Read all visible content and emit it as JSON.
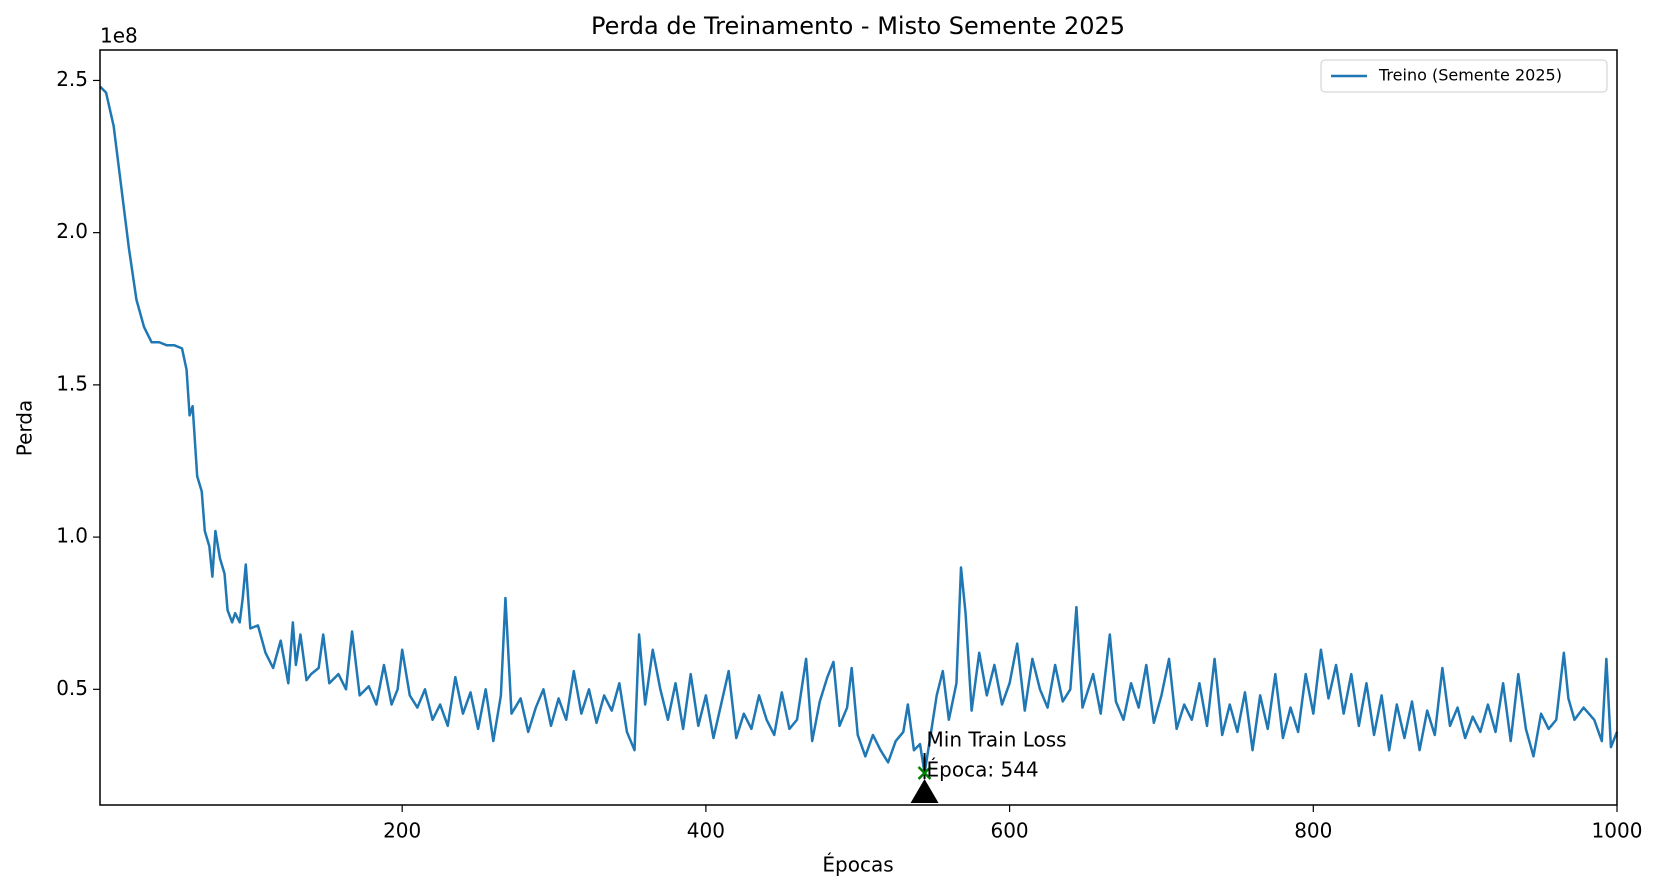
{
  "chart_data": {
    "type": "line",
    "title": "Perda de Treinamento - Misto Semente 2025",
    "xlabel": "Épocas",
    "ylabel": "Perda",
    "y_offset_label": "1e8",
    "xlim": [
      1,
      1000
    ],
    "xticks": [
      200,
      400,
      600,
      800,
      1000
    ],
    "ylim": [
      0.12,
      2.6
    ],
    "yticks": [
      0.5,
      {
        "value": 1,
        "label": "1.0"
      },
      1.5,
      {
        "value": 2,
        "label": "2.0"
      },
      2.5
    ],
    "grid": false,
    "legend_loc": "upper right",
    "x": [
      1,
      5,
      10,
      15,
      20,
      25,
      30,
      35,
      40,
      45,
      50,
      55,
      58,
      60,
      62,
      65,
      68,
      70,
      73,
      75,
      77,
      80,
      83,
      85,
      88,
      90,
      93,
      95,
      97,
      100,
      105,
      110,
      115,
      120,
      125,
      128,
      130,
      133,
      137,
      140,
      145,
      148,
      152,
      158,
      163,
      167,
      172,
      178,
      183,
      188,
      193,
      197,
      200,
      205,
      210,
      215,
      220,
      225,
      230,
      235,
      240,
      245,
      250,
      255,
      260,
      265,
      268,
      272,
      278,
      283,
      288,
      293,
      298,
      303,
      308,
      313,
      318,
      323,
      328,
      333,
      338,
      343,
      348,
      353,
      356,
      360,
      365,
      370,
      375,
      380,
      385,
      390,
      395,
      400,
      405,
      410,
      415,
      420,
      425,
      430,
      435,
      440,
      445,
      450,
      455,
      460,
      466,
      470,
      475,
      480,
      484,
      488,
      493,
      496,
      500,
      505,
      510,
      515,
      520,
      525,
      530,
      533,
      537,
      541,
      544,
      548,
      552,
      556,
      560,
      565,
      568,
      571,
      575,
      580,
      585,
      590,
      595,
      600,
      605,
      610,
      615,
      620,
      625,
      630,
      635,
      640,
      644,
      648,
      655,
      660,
      666,
      670,
      675,
      680,
      685,
      690,
      695,
      700,
      705,
      710,
      715,
      720,
      725,
      730,
      735,
      740,
      745,
      750,
      755,
      760,
      765,
      770,
      775,
      780,
      785,
      790,
      795,
      800,
      805,
      810,
      815,
      820,
      825,
      830,
      835,
      840,
      845,
      850,
      855,
      860,
      865,
      870,
      875,
      880,
      885,
      890,
      895,
      900,
      905,
      910,
      915,
      920,
      925,
      930,
      935,
      940,
      945,
      950,
      955,
      960,
      965,
      968,
      972,
      978,
      985,
      990,
      993,
      996,
      1000
    ],
    "series": [
      {
        "name": "Treino (Semente 2025)",
        "color": "#1f77b4",
        "values": [
          2.48,
          2.46,
          2.35,
          2.15,
          1.95,
          1.78,
          1.69,
          1.64,
          1.64,
          1.63,
          1.63,
          1.62,
          1.55,
          1.4,
          1.43,
          1.2,
          1.15,
          1.02,
          0.97,
          0.87,
          1.02,
          0.93,
          0.88,
          0.76,
          0.72,
          0.75,
          0.72,
          0.8,
          0.91,
          0.7,
          0.71,
          0.62,
          0.57,
          0.66,
          0.52,
          0.72,
          0.58,
          0.68,
          0.53,
          0.55,
          0.57,
          0.68,
          0.52,
          0.55,
          0.5,
          0.69,
          0.48,
          0.51,
          0.45,
          0.58,
          0.45,
          0.5,
          0.63,
          0.48,
          0.44,
          0.5,
          0.4,
          0.45,
          0.38,
          0.54,
          0.42,
          0.49,
          0.37,
          0.5,
          0.33,
          0.48,
          0.8,
          0.42,
          0.47,
          0.36,
          0.44,
          0.5,
          0.38,
          0.47,
          0.4,
          0.56,
          0.42,
          0.5,
          0.39,
          0.48,
          0.43,
          0.52,
          0.36,
          0.3,
          0.68,
          0.45,
          0.63,
          0.5,
          0.4,
          0.52,
          0.37,
          0.55,
          0.38,
          0.48,
          0.34,
          0.45,
          0.56,
          0.34,
          0.42,
          0.37,
          0.48,
          0.4,
          0.35,
          0.49,
          0.37,
          0.4,
          0.6,
          0.33,
          0.46,
          0.54,
          0.59,
          0.38,
          0.44,
          0.57,
          0.35,
          0.28,
          0.35,
          0.3,
          0.26,
          0.33,
          0.36,
          0.45,
          0.3,
          0.32,
          0.225,
          0.35,
          0.48,
          0.56,
          0.4,
          0.52,
          0.9,
          0.75,
          0.43,
          0.62,
          0.48,
          0.58,
          0.45,
          0.52,
          0.65,
          0.43,
          0.6,
          0.5,
          0.44,
          0.58,
          0.46,
          0.5,
          0.77,
          0.44,
          0.55,
          0.42,
          0.68,
          0.46,
          0.4,
          0.52,
          0.44,
          0.58,
          0.39,
          0.48,
          0.6,
          0.37,
          0.45,
          0.4,
          0.52,
          0.38,
          0.6,
          0.35,
          0.45,
          0.36,
          0.49,
          0.3,
          0.48,
          0.37,
          0.55,
          0.34,
          0.44,
          0.36,
          0.55,
          0.42,
          0.63,
          0.47,
          0.58,
          0.42,
          0.55,
          0.38,
          0.52,
          0.35,
          0.48,
          0.3,
          0.45,
          0.34,
          0.46,
          0.3,
          0.43,
          0.35,
          0.57,
          0.38,
          0.44,
          0.34,
          0.41,
          0.36,
          0.45,
          0.36,
          0.52,
          0.33,
          0.55,
          0.37,
          0.28,
          0.42,
          0.37,
          0.4,
          0.62,
          0.47,
          0.4,
          0.44,
          0.4,
          0.33,
          0.6,
          0.31,
          0.36
        ]
      }
    ],
    "annotation": {
      "x": 544,
      "y": 0.225,
      "color": "green",
      "lines": [
        "Min Train Loss",
        "Época: 544"
      ]
    }
  }
}
